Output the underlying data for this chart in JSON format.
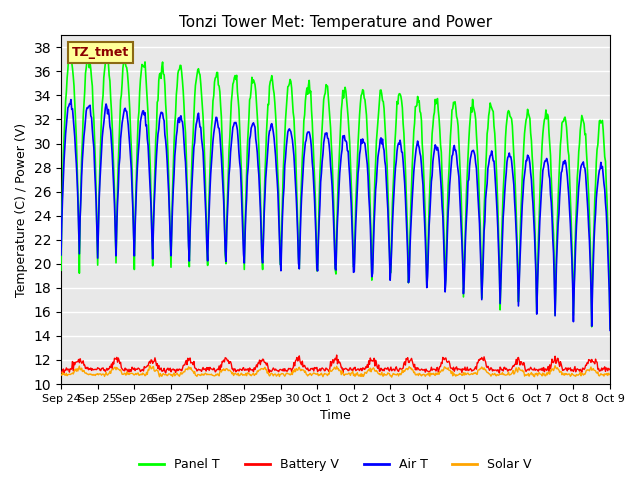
{
  "title": "Tonzi Tower Met: Temperature and Power",
  "xlabel": "Time",
  "ylabel": "Temperature (C) / Power (V)",
  "ylim": [
    10,
    39
  ],
  "yticks": [
    10,
    12,
    14,
    16,
    18,
    20,
    22,
    24,
    26,
    28,
    30,
    32,
    34,
    36,
    38
  ],
  "colors": {
    "panel_t": "#00FF00",
    "battery_v": "#FF0000",
    "air_t": "#0000FF",
    "solar_v": "#FFA500"
  },
  "legend_labels": [
    "Panel T",
    "Battery V",
    "Air T",
    "Solar V"
  ],
  "tz_tmet_label": "TZ_tmet",
  "tz_tmet_bg": "#FFFF99",
  "tz_tmet_text": "#8B0000",
  "background_color": "#E8E8E8",
  "x_tick_labels": [
    "Sep 24",
    "Sep 25",
    "Sep 26",
    "Sep 27",
    "Sep 28",
    "Sep 29",
    "Sep 30",
    "Oct 1",
    "Oct 2",
    "Oct 3",
    "Oct 4",
    "Oct 5",
    "Oct 6",
    "Oct 7",
    "Oct 8",
    "Oct 9"
  ],
  "n_days": 15,
  "points_per_day": 48
}
